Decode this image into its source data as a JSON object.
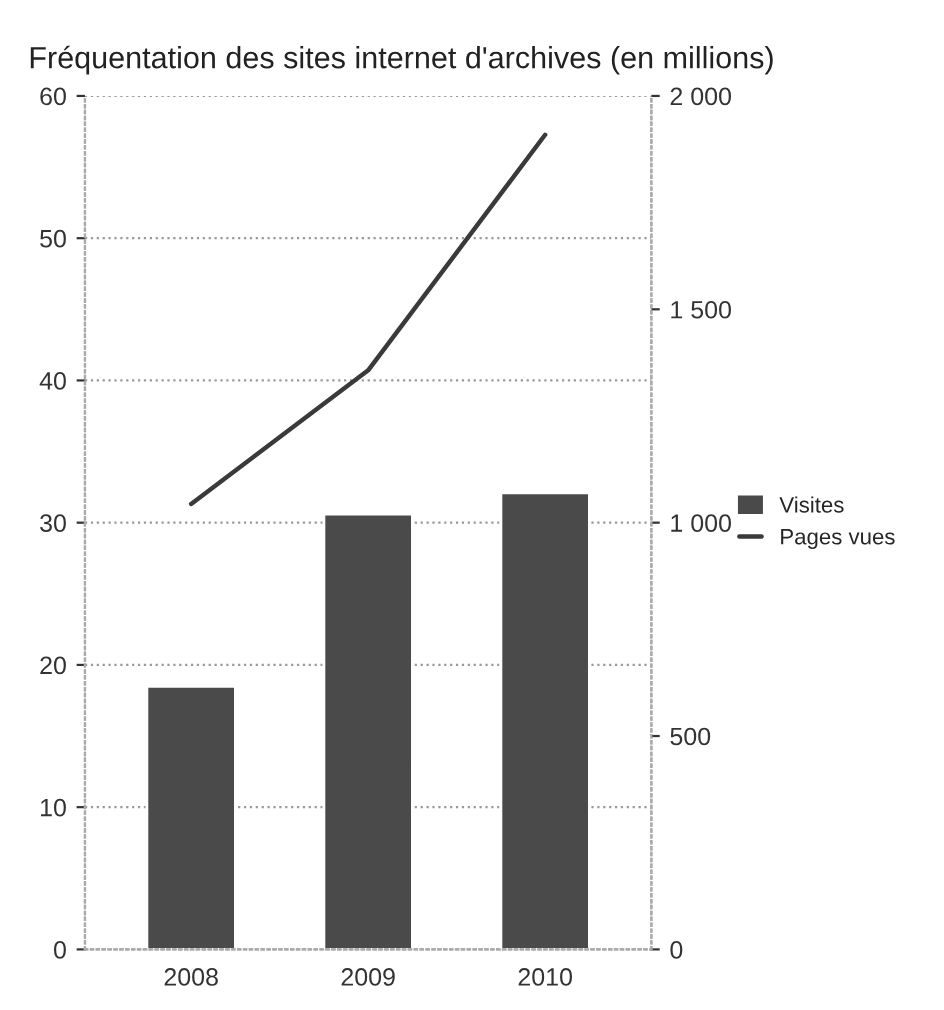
{
  "chart_data": {
    "type": "bar",
    "title": "Fréquentation des sites internet d'archives (en millions)",
    "categories": [
      "2008",
      "2009",
      "2010"
    ],
    "series": [
      {
        "name": "Visites",
        "color": "#4a4a4a",
        "values": [
          18.5,
          30.6,
          32.1
        ]
      },
      {
        "name": "Pages vues",
        "type": "line",
        "axis": "y2",
        "color": "#3a3a3a",
        "values": [
          1044,
          1357,
          1909
        ]
      }
    ],
    "ylim": [
      0,
      60
    ],
    "yticks": [
      0,
      10,
      20,
      30,
      40,
      50,
      60
    ],
    "y2lim": [
      0,
      2000
    ],
    "y2ticks": [
      0,
      {
        "value": 500,
        "label": "500"
      },
      {
        "value": 1000,
        "label": "1 000"
      },
      {
        "value": 1500,
        "label": "1 500"
      },
      {
        "value": 2000,
        "label": "2 000"
      }
    ],
    "grid": "y",
    "legend": "right"
  }
}
